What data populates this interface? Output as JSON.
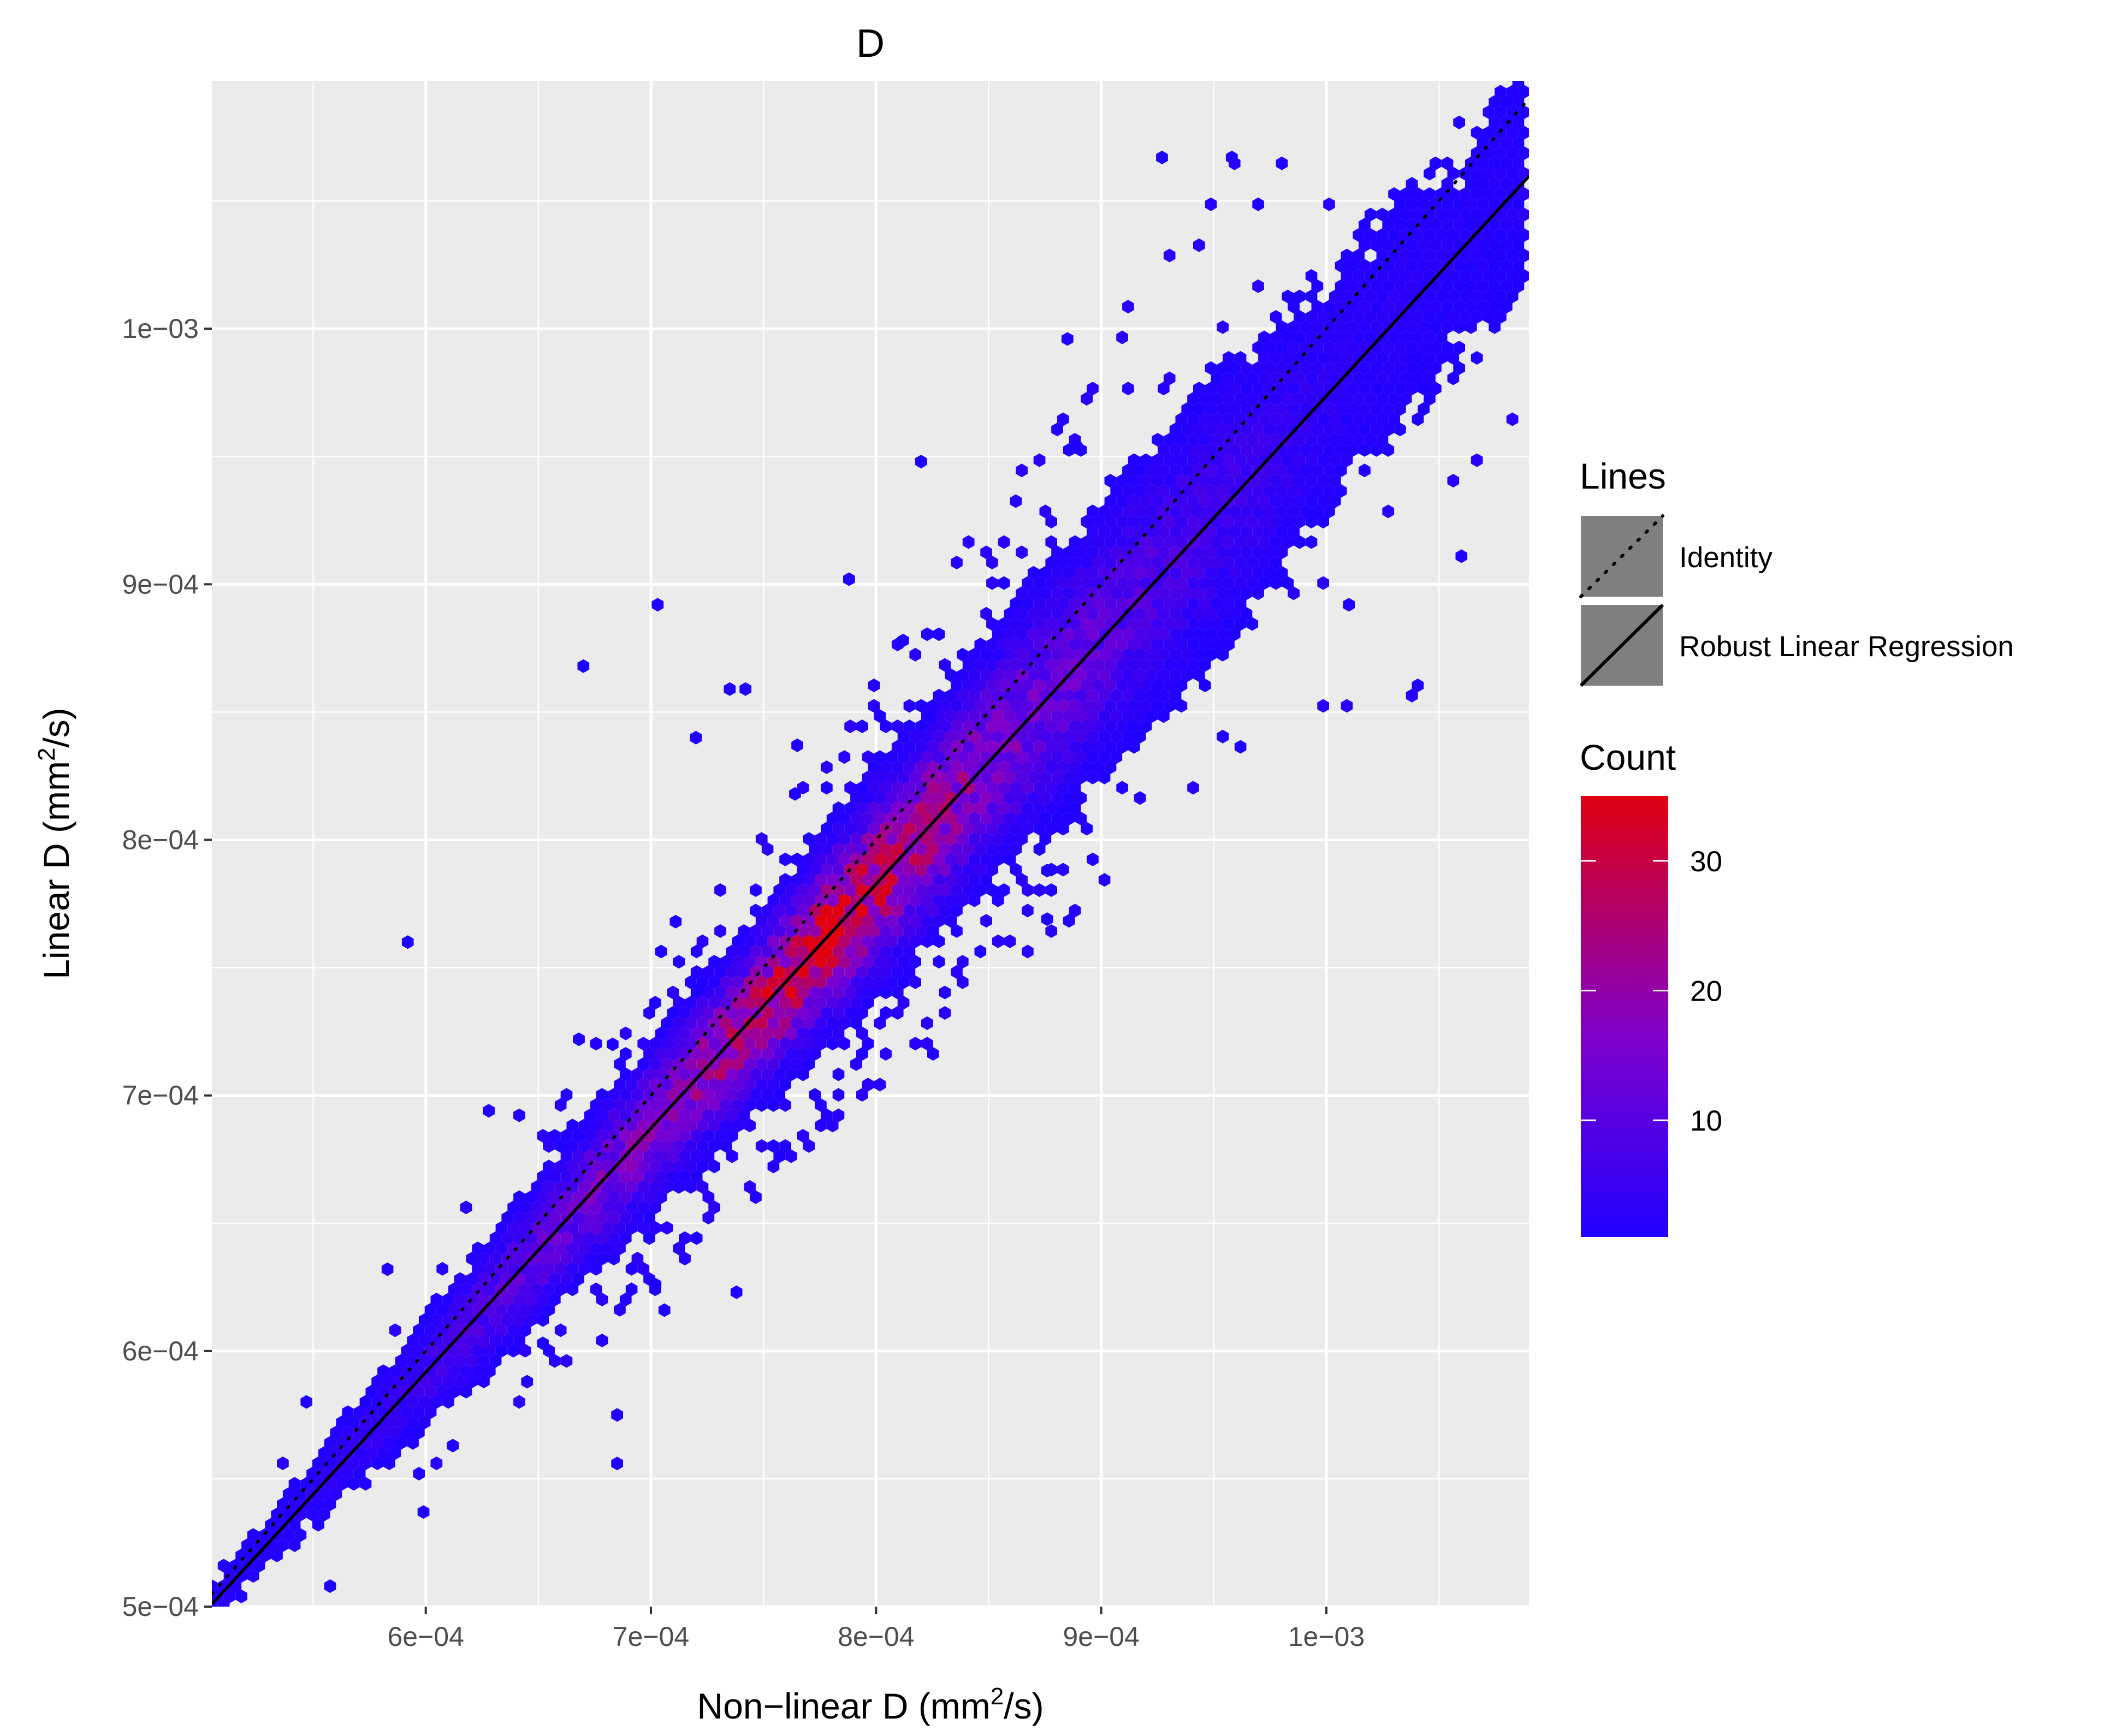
{
  "chart_data": {
    "type": "scatter",
    "subtype": "hexbin",
    "title": "D",
    "xlabel": {
      "main": "Non−linear D (mm",
      "sup": "2",
      "rest": "/s)"
    },
    "ylabel": {
      "main": "Linear D (mm",
      "sup": "2",
      "rest": "/s)"
    },
    "xlim": [
      0.000505,
      0.00109
    ],
    "ylim": [
      0.0005,
      0.001097
    ],
    "x_ticks": [
      {
        "value": 0.0006,
        "label": "6e−04"
      },
      {
        "value": 0.0007,
        "label": "7e−04"
      },
      {
        "value": 0.0008,
        "label": "8e−04"
      },
      {
        "value": 0.0009,
        "label": "9e−04"
      },
      {
        "value": 0.001,
        "label": "1e−03"
      }
    ],
    "y_ticks": [
      {
        "value": 0.0005,
        "label": "5e−04"
      },
      {
        "value": 0.0006,
        "label": "6e−04"
      },
      {
        "value": 0.0007,
        "label": "7e−04"
      },
      {
        "value": 0.0008,
        "label": "8e−04"
      },
      {
        "value": 0.0009,
        "label": "9e−04"
      },
      {
        "value": 0.001,
        "label": "1e−03"
      }
    ],
    "grid": true,
    "panel_background": "#ebebeb",
    "lines": [
      {
        "name": "Identity",
        "style": "dotted",
        "slope": 1,
        "intercept": 0
      },
      {
        "name": "Robust Linear Regression",
        "style": "solid",
        "slope": 0.955,
        "intercept": 1.87e-05
      }
    ],
    "legend_lines_title": "Lines",
    "legend_count_title": "Count",
    "count_scale": {
      "min": 1,
      "max": 35,
      "low_color": "#1f00ff",
      "mid_color": "#7f00cc",
      "high_color": "#e00010",
      "ticks": [
        10,
        20,
        30
      ]
    },
    "density_profile": [
      {
        "x": 0.000535,
        "spread": 8.5e-06,
        "peak": 2
      },
      {
        "x": 0.00058,
        "spread": 1.1e-05,
        "peak": 4
      },
      {
        "x": 0.00062,
        "spread": 1.3e-05,
        "peak": 8
      },
      {
        "x": 0.00066,
        "spread": 1.4e-05,
        "peak": 12
      },
      {
        "x": 0.0007,
        "spread": 1.5e-05,
        "peak": 17
      },
      {
        "x": 0.00074,
        "spread": 1.6e-05,
        "peak": 24
      },
      {
        "x": 0.00078,
        "spread": 1.7e-05,
        "peak": 32
      },
      {
        "x": 0.00081,
        "spread": 1.9e-05,
        "peak": 26
      },
      {
        "x": 0.00085,
        "spread": 2.2e-05,
        "peak": 16
      },
      {
        "x": 0.0009,
        "spread": 2.6e-05,
        "peak": 10
      },
      {
        "x": 0.00095,
        "spread": 3e-05,
        "peak": 6
      },
      {
        "x": 0.001,
        "spread": 3.2e-05,
        "peak": 3
      },
      {
        "x": 0.00106,
        "spread": 3.6e-05,
        "peak": 2
      }
    ],
    "outliers": [
      [
        0.000592,
        0.00076
      ],
      [
        0.00067,
        0.000868
      ],
      [
        0.000703,
        0.000892
      ],
      [
        0.000583,
        0.000632
      ],
      [
        0.000927,
        0.001067
      ],
      [
        0.000958,
        0.001067
      ],
      [
        0.00106,
        0.000911
      ],
      [
        0.00101,
        0.000892
      ],
      [
        0.000885,
        0.000996
      ],
      [
        0.000711,
        0.000768
      ],
      [
        0.000645,
        0.000588
      ],
      [
        0.000685,
        0.000575
      ],
      [
        0.000685,
        0.000556
      ],
      [
        0.000599,
        0.000537
      ],
      [
        0.000738,
        0.000623
      ],
      [
        0.000765,
        0.000837
      ],
      [
        0.000764,
        0.000818
      ],
      [
        0.000668,
        0.000722
      ],
      [
        0.000876,
        0.000788
      ],
      [
        0.000876,
        0.000769
      ],
      [
        0.000889,
        0.000954
      ],
      [
        0.000824,
        0.000848
      ],
      [
        0.000812,
        0.000878
      ],
      [
        0.000742,
        0.000859
      ],
      [
        0.000735,
        0.000859
      ],
      [
        0.00072,
        0.00084
      ],
      [
        0.000702,
        0.000626
      ],
      [
        0.000706,
        0.000616
      ],
      [
        0.000721,
        0.000741
      ],
      [
        0.00082,
        0.000948
      ],
      [
        0.000788,
        0.000902
      ],
      [
        0.000628,
        0.000694
      ],
      [
        0.000652,
        0.000603
      ],
      [
        0.000597,
        0.000552
      ],
      [
        0.000612,
        0.000563
      ],
      [
        0.000683,
        0.00072
      ]
    ]
  }
}
